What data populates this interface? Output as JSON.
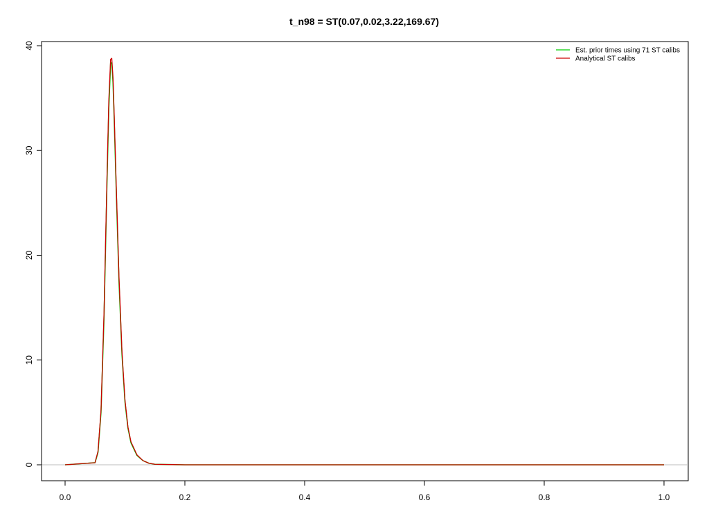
{
  "chart_data": {
    "type": "line",
    "title": "t_n98 = ST(0.07,0.02,3.22,169.67)",
    "xlabel": "",
    "ylabel": "",
    "xlim": [
      0,
      1
    ],
    "ylim": [
      0,
      40
    ],
    "x_ticks": [
      "0.0",
      "0.2",
      "0.4",
      "0.6",
      "0.8",
      "1.0"
    ],
    "y_ticks": [
      "0",
      "10",
      "20",
      "30",
      "40"
    ],
    "grid": false,
    "legend_position": "top-right",
    "reference_line": {
      "y": 0,
      "color": "#bebebe"
    },
    "series": [
      {
        "name": "Est. prior times using 71 ST calibs",
        "color": "#00cd00",
        "x": [
          0.0,
          0.05,
          0.055,
          0.06,
          0.065,
          0.07,
          0.073,
          0.076,
          0.078,
          0.08,
          0.082,
          0.085,
          0.09,
          0.095,
          0.1,
          0.105,
          0.11,
          0.12,
          0.13,
          0.14,
          0.15,
          0.2,
          0.4,
          0.6,
          0.8,
          1.0
        ],
        "y": [
          0.0,
          0.2,
          1.2,
          5.0,
          14.0,
          27.0,
          34.0,
          38.3,
          38.4,
          36.5,
          33.0,
          27.0,
          17.5,
          10.5,
          6.0,
          3.5,
          2.1,
          0.9,
          0.4,
          0.15,
          0.05,
          0.0,
          0.0,
          0.0,
          0.0,
          0.0
        ]
      },
      {
        "name": "Analytical ST calibs",
        "color": "#cd0000",
        "x": [
          0.0,
          0.05,
          0.055,
          0.06,
          0.065,
          0.07,
          0.073,
          0.076,
          0.078,
          0.08,
          0.082,
          0.085,
          0.09,
          0.095,
          0.1,
          0.105,
          0.11,
          0.12,
          0.13,
          0.14,
          0.15,
          0.2,
          0.4,
          0.6,
          0.8,
          1.0
        ],
        "y": [
          0.0,
          0.2,
          1.3,
          5.2,
          14.5,
          27.5,
          34.8,
          38.7,
          38.8,
          37.0,
          33.5,
          27.5,
          18.0,
          10.8,
          6.2,
          3.6,
          2.2,
          0.95,
          0.4,
          0.15,
          0.05,
          0.0,
          0.0,
          0.0,
          0.0,
          0.0
        ]
      }
    ]
  }
}
